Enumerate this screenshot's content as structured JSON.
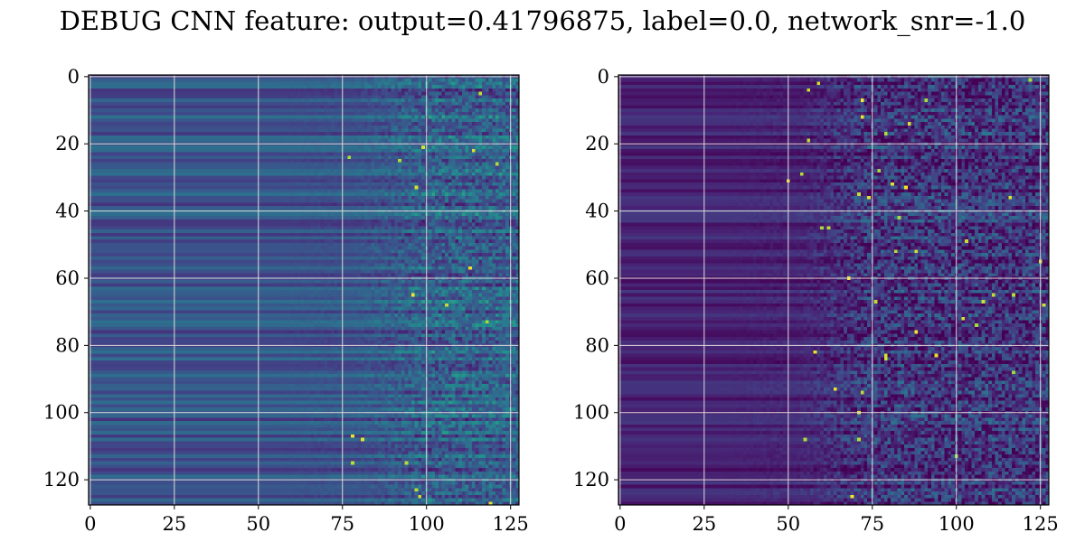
{
  "title": "DEBUG CNN feature: output=0.41796875, label=0.0, network_snr=-1.0",
  "colors": {
    "colormap": "viridis",
    "grid": "#dddddd",
    "frame": "#000000"
  },
  "chart_data": [
    {
      "type": "heatmap",
      "name": "",
      "colormap": "viridis",
      "rows": 128,
      "cols": 128,
      "xlim": [
        -0.5,
        127.5
      ],
      "ylim": [
        127.5,
        -0.5
      ],
      "xticks": [
        0,
        25,
        50,
        75,
        100,
        125
      ],
      "yticks": [
        0,
        20,
        40,
        60,
        80,
        100,
        120
      ],
      "xtick_labels": [
        "0",
        "25",
        "50",
        "75",
        "100",
        "125"
      ],
      "ytick_labels": [
        "0",
        "20",
        "40",
        "60",
        "80",
        "100",
        "120"
      ],
      "grid": true,
      "description": "",
      "pattern": {
        "row_band_strength": 0.55,
        "base_level": 0.32,
        "noise_start_col": 75,
        "noise_level": 0.35
      }
    },
    {
      "type": "heatmap",
      "name": "",
      "colormap": "viridis",
      "rows": 128,
      "cols": 128,
      "xlim": [
        -0.5,
        127.5
      ],
      "ylim": [
        127.5,
        -0.5
      ],
      "xticks": [
        0,
        25,
        50,
        75,
        100,
        125
      ],
      "yticks": [
        0,
        20,
        40,
        60,
        80,
        100,
        120
      ],
      "xtick_labels": [
        "0",
        "25",
        "50",
        "75",
        "100",
        "125"
      ],
      "ytick_labels": [
        "0",
        "20",
        "40",
        "60",
        "80",
        "100",
        "120"
      ],
      "grid": true,
      "description": "",
      "pattern": {
        "row_band_strength": 0.35,
        "base_level": 0.12,
        "noise_start_col": 50,
        "noise_level": 0.45
      }
    }
  ]
}
